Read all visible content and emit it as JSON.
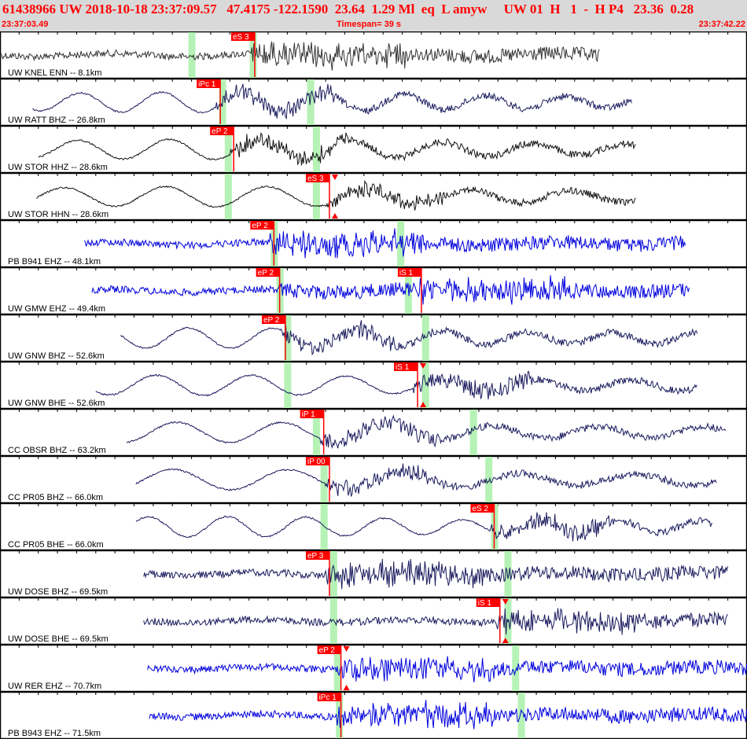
{
  "header": {
    "title": "61438966 UW 2018-10-18 23:37:09.57   47.4175 -122.1590  23.64  1.29 Ml  eq  L amyw     UW 01  H   1  -  H P4   23.36  0.28",
    "start_time": "23:37:03.49",
    "timespan": "Timespan=  39 s",
    "end_time": "23:37:42.22"
  },
  "colors": {
    "header_text": "#ff0000",
    "pick": "#ff0000",
    "window": "#b6f2b6",
    "border": "#000000",
    "dark_trace": "#1a1a5e",
    "blue_trace": "#0000dd",
    "black_trace": "#111111"
  },
  "chart_data": {
    "type": "line",
    "title": "61438966 UW 2018-10-18 23:37:09.57",
    "xlabel": "Timespan=  39 s",
    "x_range": [
      "23:37:03.49",
      "23:37:42.22"
    ],
    "traces": [
      {
        "label": "UW KNEL ENN -- 8.1km",
        "color": "#333333",
        "style": "noise",
        "start_s": 0.0,
        "end_s": 31.3,
        "windows_s": [
          10.0,
          13.2
        ],
        "picks": [
          {
            "label": "eS 3",
            "t_s": 13.3,
            "filled_markers": false
          }
        ]
      },
      {
        "label": "UW RATT BHZ -- 26.8km",
        "color": "#1a1a5e",
        "style": "wave",
        "start_s": 1.7,
        "end_s": 33.0,
        "windows_s": [
          11.6,
          16.2
        ],
        "picks": [
          {
            "label": "iPc 1",
            "t_s": 11.5,
            "filled_markers": false
          }
        ]
      },
      {
        "label": "UW STOR HHZ -- 28.6km",
        "color": "#111111",
        "style": "wave",
        "start_s": 2.0,
        "end_s": 33.2,
        "windows_s": [
          11.9,
          16.5
        ],
        "picks": [
          {
            "label": "eP 2",
            "t_s": 12.2,
            "filled_markers": false
          }
        ]
      },
      {
        "label": "UW STOR HHN -- 28.6km",
        "color": "#111111",
        "style": "wave",
        "start_s": 1.9,
        "end_s": 33.2,
        "windows_s": [
          11.9,
          16.5
        ],
        "picks": [
          {
            "label": "eS 3",
            "t_s": 17.2,
            "filled_markers": true
          }
        ]
      },
      {
        "label": "PB B941 EHZ -- 48.1km",
        "color": "#0000dd",
        "style": "noise",
        "start_s": 4.4,
        "end_s": 35.8,
        "windows_s": [
          14.3,
          20.9
        ],
        "picks": [
          {
            "label": "eP 2",
            "t_s": 14.3,
            "filled_markers": false
          }
        ]
      },
      {
        "label": "UW GMW EHZ -- 49.4km",
        "color": "#0000dd",
        "style": "noise",
        "start_s": 4.8,
        "end_s": 36.0,
        "windows_s": [
          14.6,
          21.3
        ],
        "picks": [
          {
            "label": "eP 2",
            "t_s": 14.6,
            "filled_markers": false
          },
          {
            "label": "iS 1",
            "t_s": 22.0,
            "filled_markers": false
          }
        ]
      },
      {
        "label": "UW GNW BHZ -- 52.6km",
        "color": "#1a1a5e",
        "style": "wave",
        "start_s": 6.3,
        "end_s": 36.4,
        "windows_s": [
          15.0,
          22.2
        ],
        "picks": [
          {
            "label": "eP 2",
            "t_s": 14.9,
            "filled_markers": false
          }
        ]
      },
      {
        "label": "UW GNW BHE -- 52.6km",
        "color": "#1a1a5e",
        "style": "wave",
        "start_s": 5.0,
        "end_s": 36.4,
        "windows_s": [
          15.0,
          22.2
        ],
        "picks": [
          {
            "label": "iS 1",
            "t_s": 21.8,
            "filled_markers": true
          }
        ]
      },
      {
        "label": "CC OBSR BHZ -- 63.2km",
        "color": "#1a1a5e",
        "style": "wave",
        "start_s": 6.6,
        "end_s": 37.9,
        "windows_s": [
          16.5,
          24.7
        ],
        "picks": [
          {
            "label": "iP 1",
            "t_s": 16.9,
            "filled_markers": false
          }
        ]
      },
      {
        "label": "CC PR05 BHZ -- 66.0km",
        "color": "#1a1a5e",
        "style": "wave",
        "start_s": 7.1,
        "end_s": 37.4,
        "windows_s": [
          16.9,
          25.5
        ],
        "picks": [
          {
            "label": "iP 00",
            "t_s": 17.2,
            "filled_markers": false
          }
        ]
      },
      {
        "label": "CC PR05 BHE -- 66.0km",
        "color": "#1a1a5e",
        "style": "wave",
        "start_s": 7.1,
        "end_s": 37.2,
        "windows_s": [
          16.9,
          25.8
        ],
        "picks": [
          {
            "label": "eS 2",
            "t_s": 25.8,
            "filled_markers": false
          }
        ]
      },
      {
        "label": "UW DOSE BHZ -- 69.5km",
        "color": "#1a1a5e",
        "style": "noise",
        "start_s": 7.5,
        "end_s": 38.0,
        "windows_s": [
          17.4,
          26.5
        ],
        "picks": [
          {
            "label": "eP 3",
            "t_s": 17.2,
            "filled_markers": false
          }
        ]
      },
      {
        "label": "UW DOSE BHE -- 69.5km",
        "color": "#1a1a5e",
        "style": "noise",
        "start_s": 7.5,
        "end_s": 38.0,
        "windows_s": [
          17.4,
          26.5
        ],
        "picks": [
          {
            "label": "iS 1",
            "t_s": 26.1,
            "filled_markers": true
          }
        ]
      },
      {
        "label": "UW RER EHZ -- 70.7km",
        "color": "#0000dd",
        "style": "noise",
        "start_s": 7.7,
        "end_s": 39.0,
        "windows_s": [
          17.6,
          26.9
        ],
        "picks": [
          {
            "label": "eP 2",
            "t_s": 17.8,
            "filled_markers": true
          }
        ]
      },
      {
        "label": "PB B943 EHZ -- 71.5km",
        "color": "#0000dd",
        "style": "noise",
        "start_s": 7.8,
        "end_s": 39.0,
        "windows_s": [
          17.7,
          27.2
        ],
        "picks": [
          {
            "label": "iPc 1",
            "t_s": 17.8,
            "filled_markers": false
          }
        ]
      }
    ]
  }
}
